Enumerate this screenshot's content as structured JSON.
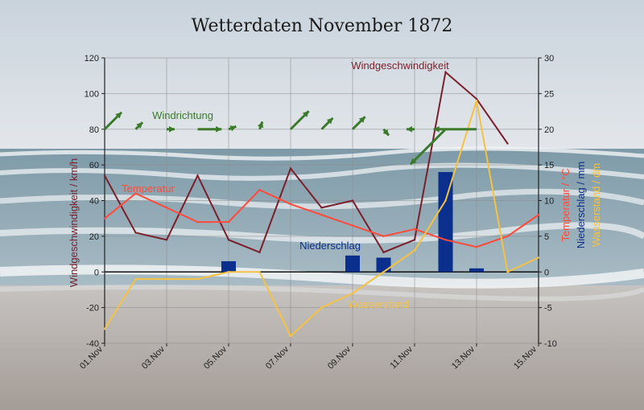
{
  "chart_data": {
    "type": "line",
    "title": "Wetterdaten November 1872",
    "background": "beach-sea-photo",
    "x": [
      "01.Nov",
      "02.Nov",
      "03.Nov",
      "04.Nov",
      "05.Nov",
      "06.Nov",
      "07.Nov",
      "08.Nov",
      "09.Nov",
      "10.Nov",
      "11.Nov",
      "12.Nov",
      "13.Nov",
      "14.Nov",
      "15.Nov"
    ],
    "xtick_labels": [
      "01.Nov",
      "03.Nov",
      "05.Nov",
      "07.Nov",
      "09.Nov",
      "11.Nov",
      "13.Nov",
      "15.Nov"
    ],
    "y_left": {
      "label": "Windgeschwindigkeit / km/h",
      "lim": [
        -40,
        120
      ],
      "ticks": [
        -40,
        -20,
        0,
        20,
        40,
        60,
        80,
        100,
        120
      ]
    },
    "y_right": {
      "labels": [
        "Temperatur / °C",
        "Niederschlag / mm",
        "Wasserstand / dm"
      ],
      "lim": [
        -10,
        30
      ],
      "ticks": [
        -10,
        -5,
        0,
        5,
        10,
        15,
        20,
        25,
        30
      ]
    },
    "grid": true,
    "series": [
      {
        "name": "Windgeschwindigkeit",
        "axis": "left",
        "color": "#7a1f2b",
        "kind": "line",
        "values": [
          54,
          22,
          18,
          54,
          18,
          11,
          58,
          36,
          40,
          11,
          18,
          112,
          97,
          72,
          null
        ]
      },
      {
        "name": "Temperatur",
        "axis": "right",
        "color": "#ff4a3a",
        "kind": "line",
        "values": [
          7.5,
          11,
          9,
          7,
          7,
          11.5,
          9.5,
          8,
          6.5,
          5,
          6,
          4.5,
          3.5,
          5,
          8
        ]
      },
      {
        "name": "Niederschlag",
        "axis": "right",
        "color": "#0a2f8c",
        "kind": "bar",
        "values": [
          0,
          0,
          0,
          0,
          1.5,
          0,
          0,
          0,
          2.3,
          2,
          0,
          14,
          0.5,
          0,
          0
        ]
      },
      {
        "name": "Wasserstand",
        "axis": "right",
        "color": "#f5c242",
        "kind": "line",
        "values": [
          -8,
          -1,
          -1,
          -1,
          0,
          0,
          -9,
          -5,
          -3,
          0,
          3,
          10,
          24,
          0,
          2
        ]
      },
      {
        "name": "Windrichtung",
        "axis": "left",
        "color": "#3a7a2a",
        "kind": "arrows",
        "dates": [
          "01.Nov",
          "02.Nov",
          "03.Nov",
          "04.Nov",
          "05.Nov",
          "06.Nov",
          "07.Nov",
          "08.Nov",
          "09.Nov",
          "10.Nov",
          "11.Nov",
          "12.Nov",
          "13.Nov"
        ],
        "directions_deg": [
          225,
          225,
          270,
          270,
          250,
          200,
          225,
          225,
          225,
          320,
          90,
          45,
          90
        ],
        "strengths": [
          54,
          22,
          18,
          54,
          18,
          11,
          58,
          36,
          40,
          11,
          18,
          112,
          97
        ]
      }
    ],
    "annotations": [
      {
        "text": "Windgeschwindigkeit",
        "color": "#7a1f2b"
      },
      {
        "text": "Windrichtung",
        "color": "#3a7a2a"
      },
      {
        "text": "Temperatur",
        "color": "#ff4a3a"
      },
      {
        "text": "Niederschlag",
        "color": "#0a2f8c"
      },
      {
        "text": "Wasserstand",
        "color": "#f5c242"
      }
    ]
  }
}
